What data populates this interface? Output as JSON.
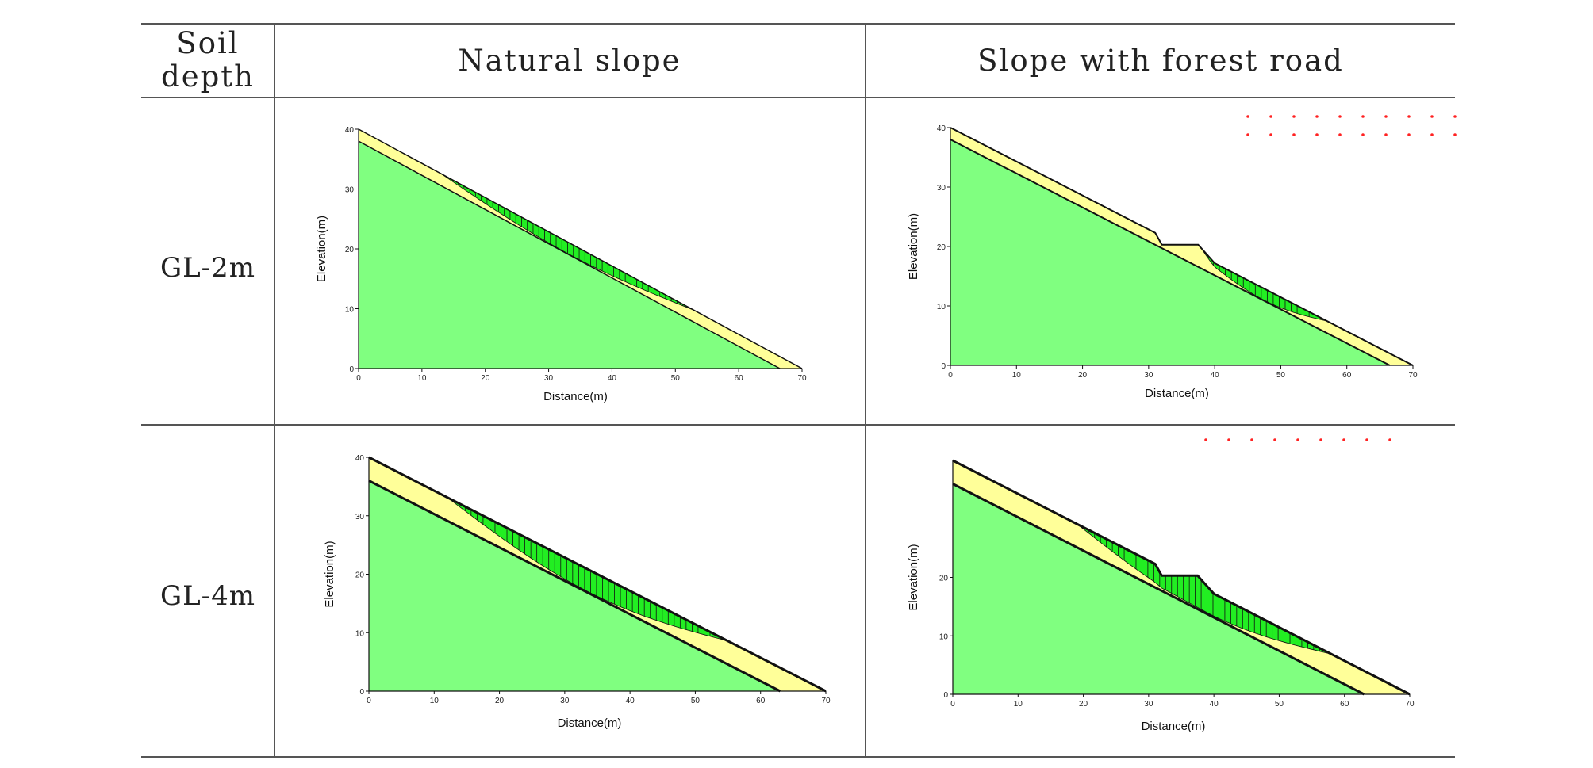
{
  "table": {
    "header": {
      "col0": "Soil depth",
      "col0_line1": "Soil",
      "col0_line2": "depth",
      "col1": "Natural slope",
      "col2": "Slope with forest road"
    },
    "rows": [
      {
        "label": "GL-2m"
      },
      {
        "label": "GL-4m"
      }
    ]
  },
  "colors": {
    "bedrock_green": "#80ff80",
    "soil_yellow": "#ffff99",
    "slip_green": "#22ee22",
    "outline": "#111111",
    "marker_red": "#ff2222",
    "grid_line": "#555555"
  },
  "plots": [
    {
      "id": "gl2-natural",
      "xlabel": "Distance(m)",
      "ylabel": "Elevation(m)",
      "xticks": [
        "0",
        "10",
        "20",
        "30",
        "40",
        "50",
        "60",
        "70"
      ],
      "yticks": [
        "0",
        "10",
        "20",
        "30",
        "40"
      ],
      "xlim": [
        0,
        70
      ],
      "ylim": [
        0,
        40
      ],
      "soil_depth_m": 2,
      "surface": [
        [
          0,
          40
        ],
        [
          70,
          0
        ]
      ],
      "bedrock": [
        [
          0,
          38
        ],
        [
          66.5,
          0
        ]
      ],
      "road": null,
      "slip_zone": {
        "x_start": 13,
        "x_end": 53
      },
      "red_markers": false
    },
    {
      "id": "gl2-road",
      "xlabel": "Distance(m)",
      "ylabel": "Elevation(m)",
      "xticks": [
        "0",
        "10",
        "20",
        "30",
        "40",
        "50",
        "60",
        "70"
      ],
      "yticks": [
        "0",
        "10",
        "20",
        "30",
        "40"
      ],
      "xlim": [
        0,
        70
      ],
      "ylim": [
        0,
        40
      ],
      "soil_depth_m": 2,
      "surface": [
        [
          0,
          40
        ],
        [
          31,
          22.3
        ],
        [
          32,
          20.3
        ],
        [
          37.5,
          20.3
        ],
        [
          40,
          17.2
        ],
        [
          70,
          0
        ]
      ],
      "bedrock": [
        [
          0,
          38
        ],
        [
          66.5,
          0
        ]
      ],
      "road": {
        "x_start": 32,
        "x_end": 37.5,
        "elevation": 20.3
      },
      "slip_zone": {
        "x_start": 38,
        "x_end": 57
      },
      "red_markers": true
    },
    {
      "id": "gl4-natural",
      "xlabel": "Distance(m)",
      "ylabel": "Elevation(m)",
      "xticks": [
        "0",
        "10",
        "20",
        "30",
        "40",
        "50",
        "60",
        "70"
      ],
      "yticks": [
        "0",
        "10",
        "20",
        "30",
        "40"
      ],
      "xlim": [
        0,
        70
      ],
      "ylim": [
        0,
        40
      ],
      "soil_depth_m": 4,
      "surface": [
        [
          0,
          40
        ],
        [
          70,
          0
        ]
      ],
      "bedrock": [
        [
          0,
          36
        ],
        [
          63,
          0
        ]
      ],
      "road": null,
      "slip_zone": {
        "x_start": 12,
        "x_end": 55
      },
      "red_markers": false
    },
    {
      "id": "gl4-road",
      "xlabel": "Distance(m)",
      "ylabel": "Elevation(m)",
      "xticks": [
        "0",
        "10",
        "20",
        "30",
        "40",
        "50",
        "60",
        "70"
      ],
      "yticks": [
        "0",
        "10",
        "20"
      ],
      "xlim": [
        0,
        70
      ],
      "ylim": [
        0,
        40
      ],
      "soil_depth_m": 4,
      "surface": [
        [
          0,
          40
        ],
        [
          31,
          22.3
        ],
        [
          32,
          20.3
        ],
        [
          37.5,
          20.3
        ],
        [
          40,
          17.2
        ],
        [
          70,
          0
        ]
      ],
      "bedrock": [
        [
          0,
          36
        ],
        [
          63,
          0
        ]
      ],
      "road": {
        "x_start": 32,
        "x_end": 37.5,
        "elevation": 20.3
      },
      "slip_zone": {
        "x_start": 19,
        "x_end": 58
      },
      "red_markers": true
    }
  ]
}
